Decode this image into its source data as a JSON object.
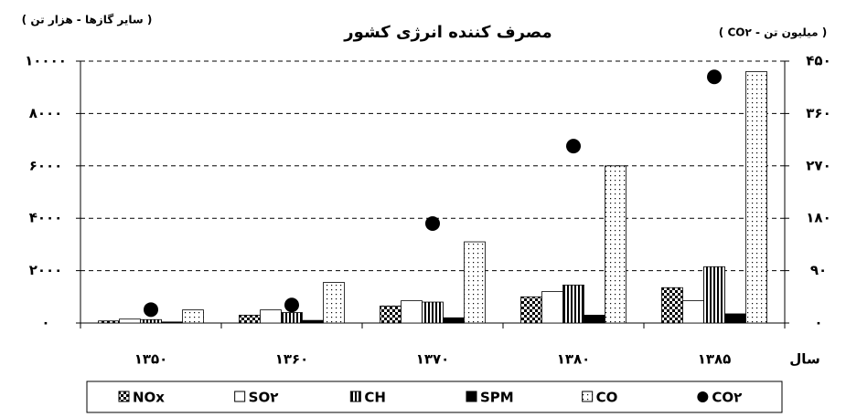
{
  "chart_data": {
    "type": "bar",
    "title": "مصرف کننده انرژی کشور",
    "y_label": "( سایر گازها - هزار تن )",
    "y2_label": "( CO۲ - میلیون تن )",
    "x_label": "سال",
    "categories": [
      "۱۳۵۰",
      "۱۳۶۰",
      "۱۳۷۰",
      "۱۳۸۰",
      "۱۳۸۵"
    ],
    "series": [
      {
        "name": "NOx",
        "color": "#000000",
        "pattern": "checker",
        "values": [
          80,
          300,
          650,
          1000,
          1350
        ]
      },
      {
        "name": "SO۲",
        "color": "#000000",
        "pattern": "none",
        "values": [
          150,
          500,
          850,
          1200,
          850
        ]
      },
      {
        "name": "CH",
        "color": "#000000",
        "pattern": "vertical",
        "values": [
          130,
          400,
          800,
          1450,
          2150
        ]
      },
      {
        "name": "SPM",
        "color": "#000000",
        "pattern": "solid",
        "values": [
          40,
          100,
          200,
          300,
          350
        ]
      },
      {
        "name": "CO",
        "color": "#000000",
        "pattern": "dots",
        "values": [
          500,
          1550,
          3100,
          6000,
          9600
        ]
      },
      {
        "name": "CO۲",
        "color": "#000000",
        "type": "scatter",
        "axis": "y2",
        "values": [
          23,
          31,
          171,
          304,
          423
        ]
      }
    ],
    "ylim": [
      0,
      10000
    ],
    "yticks": [
      {
        "value": 0,
        "label": "۰"
      },
      {
        "value": 2000,
        "label": "۲۰۰۰"
      },
      {
        "value": 4000,
        "label": "۴۰۰۰"
      },
      {
        "value": 6000,
        "label": "۶۰۰۰"
      },
      {
        "value": 8000,
        "label": "۸۰۰۰"
      },
      {
        "value": 10000,
        "label": "۱۰۰۰۰"
      }
    ],
    "y2lim": [
      0,
      450
    ],
    "y2ticks": [
      {
        "value": 0,
        "label": "۰"
      },
      {
        "value": 90,
        "label": "۹۰"
      },
      {
        "value": 180,
        "label": "۱۸۰"
      },
      {
        "value": 270,
        "label": "۲۷۰"
      },
      {
        "value": 360,
        "label": "۳۶۰"
      },
      {
        "value": 450,
        "label": "۴۵۰"
      }
    ],
    "grid": true
  }
}
